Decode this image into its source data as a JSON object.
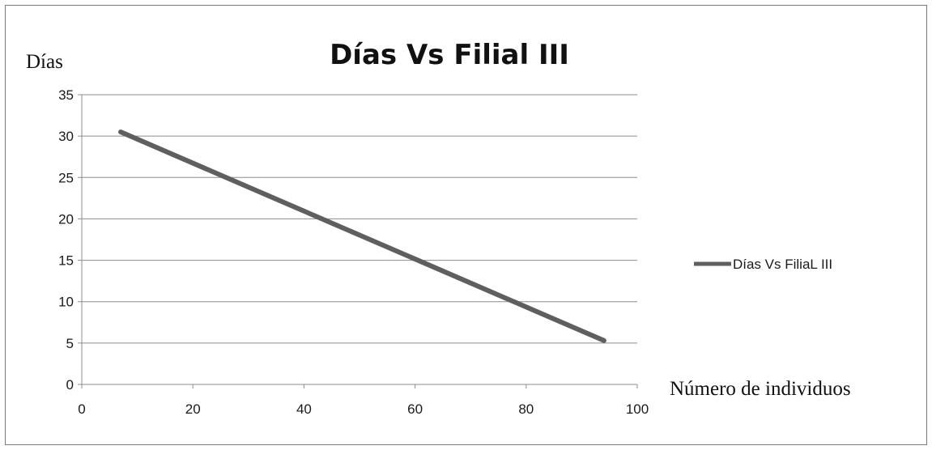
{
  "chart_data": {
    "type": "line",
    "title": "Días Vs Filial III",
    "ylabel": "Días",
    "xlabel": "Número de individuos",
    "xlim": [
      0,
      100
    ],
    "ylim": [
      0,
      35
    ],
    "xticks": [
      0,
      20,
      40,
      60,
      80,
      100
    ],
    "xtick_labels": [
      "0",
      "20",
      "40",
      "60",
      "80",
      "100"
    ],
    "yticks": [
      0,
      5,
      10,
      15,
      20,
      25,
      30,
      35
    ],
    "ytick_labels": [
      "0",
      "5",
      "10",
      "15",
      "20",
      "25",
      "30",
      "35"
    ],
    "grid": "horizontal",
    "legend": "right",
    "series": [
      {
        "name": "Días Vs FiliaL III",
        "color": "#5f5f5f",
        "x": [
          7,
          94
        ],
        "y": [
          30.5,
          5.3
        ]
      }
    ]
  }
}
